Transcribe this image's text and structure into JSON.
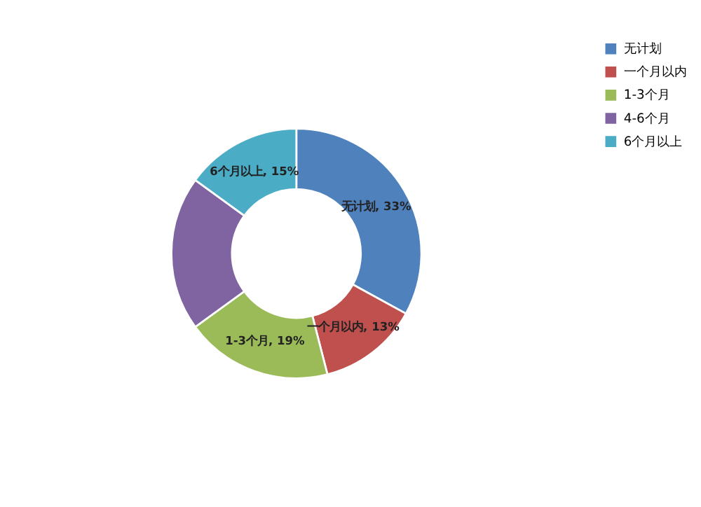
{
  "chart_data": {
    "type": "donut",
    "categories": [
      "无计划",
      "一个月以内",
      "1-3个月",
      "4-6个月",
      "6个月以上"
    ],
    "values": [
      33,
      13,
      19,
      20,
      15
    ],
    "colors": [
      "#4f81bd",
      "#c0504d",
      "#9bbb59",
      "#8064a2",
      "#4bacc6"
    ],
    "value_labels": [
      "无计划, 33%",
      "一个月以内, 13%",
      "1-3个月, 19%",
      null,
      "6个月以上, 15%"
    ],
    "legend": "right"
  }
}
